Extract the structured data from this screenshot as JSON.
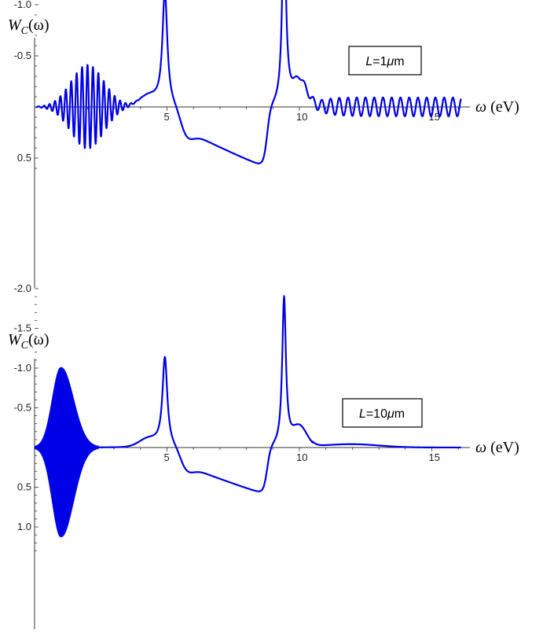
{
  "chart_data": [
    {
      "type": "line",
      "ylabel_main": "W",
      "ylabel_sub": "C",
      "ylabel_arg": "(ω)",
      "xlabel_symbol": "ω",
      "xlabel_unit": "(eV)",
      "annotation_pre": "L",
      "annotation_post": "=1",
      "annotation_unit_mu": "μ",
      "annotation_unit_m": "m",
      "xlim": [
        0,
        16.3
      ],
      "ylim": [
        -2.0,
        0.62
      ],
      "x_ticks": [
        5,
        10,
        15
      ],
      "y_ticks": [
        0.5,
        -0.5,
        -1.0,
        -1.5,
        -2.0
      ],
      "x_tick_labels": [
        "5",
        "10",
        "15"
      ],
      "y_tick_labels": [
        "0.5",
        "-0.5",
        "-1.0",
        "-1.5",
        "-2.0"
      ],
      "series": [
        {
          "color": "#0000e6",
          "shape": "low-frequency oscillation packet peaking near 2 eV (amplitude ~0.41), dip to -1.12 at 4.9 eV, rise to +0.6 at 8.6 eV, dip to -1.88 at 9.4 eV, steady oscillations (amplitude ~0.09) from 10 to 16 eV"
        }
      ]
    },
    {
      "type": "line",
      "ylabel_main": "W",
      "ylabel_sub": "C",
      "ylabel_arg": "(ω)",
      "xlabel_symbol": "ω",
      "xlabel_unit": "(eV)",
      "annotation_pre": "L",
      "annotation_post": "=10",
      "annotation_unit_mu": "μ",
      "annotation_unit_m": "m",
      "xlim": [
        0,
        16.3
      ],
      "ylim": [
        -2.0,
        1.3
      ],
      "x_ticks": [
        5,
        10,
        15
      ],
      "y_ticks": [
        1.0,
        0.5,
        -0.5,
        -1.0,
        -1.5,
        -2.0
      ],
      "x_tick_labels": [
        "5",
        "10",
        "15"
      ],
      "y_tick_labels": [
        "1.0",
        "0.5",
        "-0.5",
        "-1.0",
        "-1.5",
        "-2.0"
      ],
      "series": [
        {
          "color": "#0000e6",
          "shape": "dense high-frequency oscillation envelope peaking near 1 eV (+1.12 / -1.0), dip to -1.12 at 4.9 eV, rise to +0.6 at 8.6 eV, dip to -1.88 at 9.4 eV, flat near zero beyond 10.5 eV"
        }
      ]
    }
  ]
}
